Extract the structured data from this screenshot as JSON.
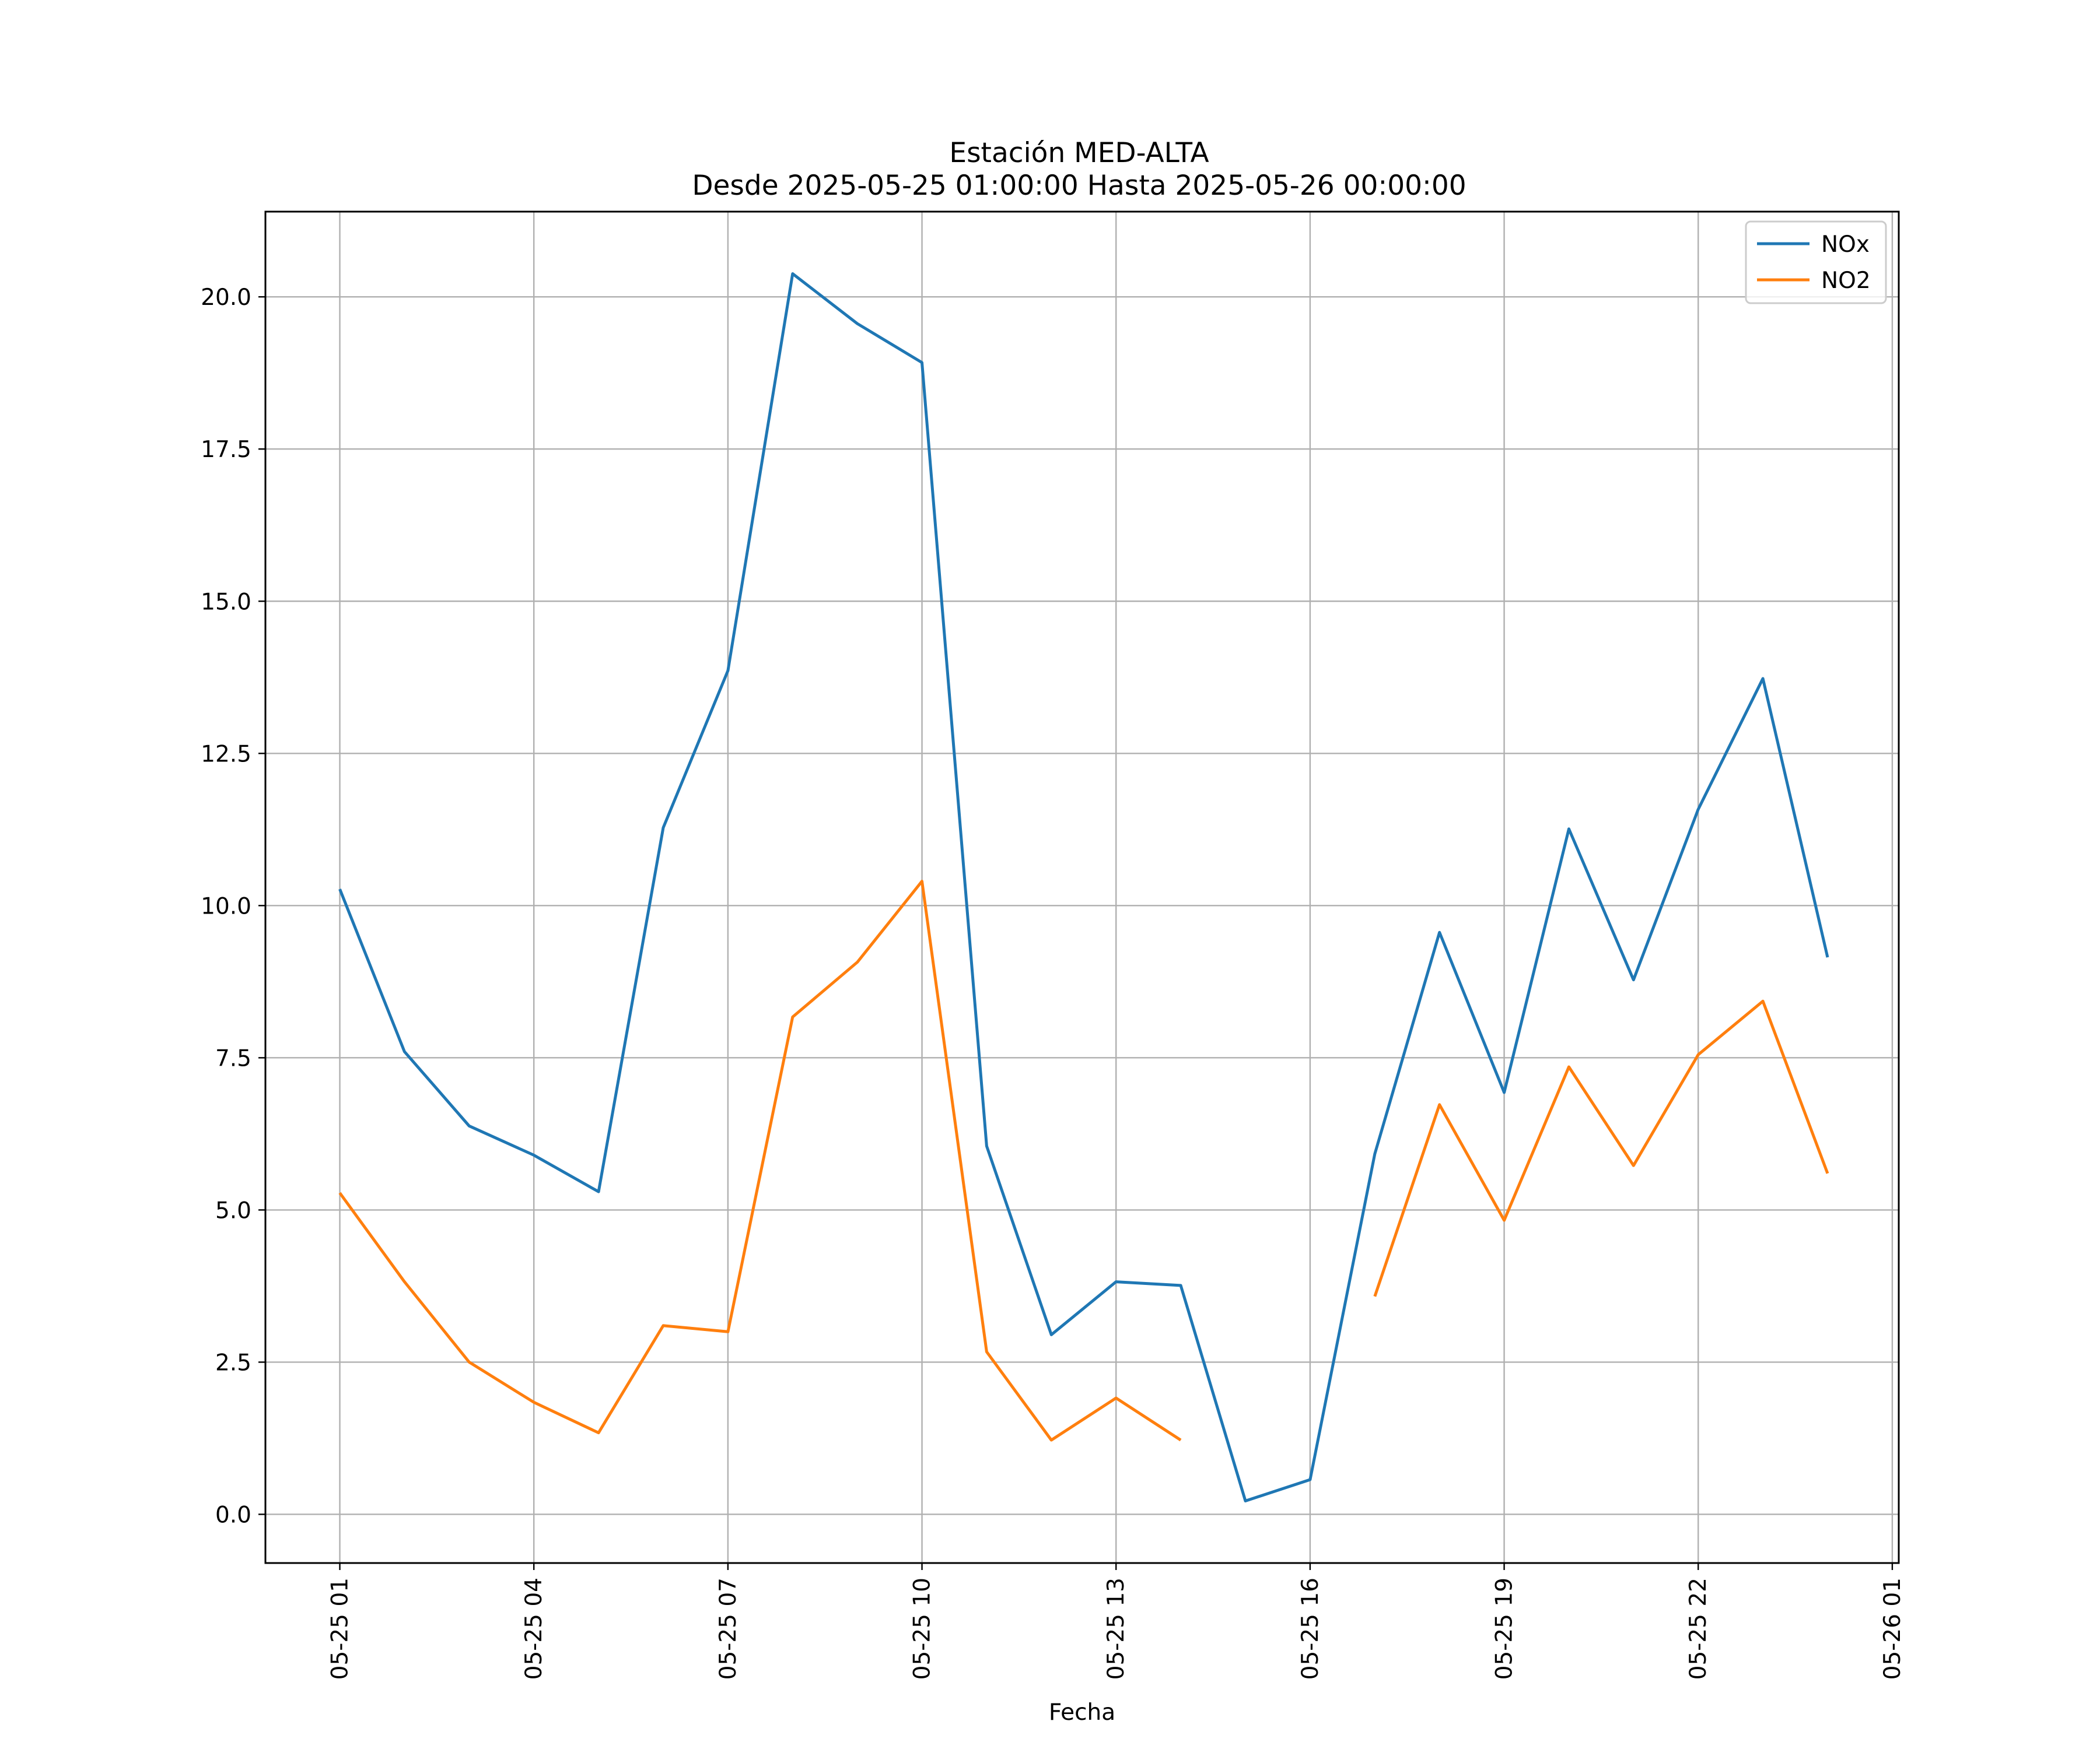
{
  "chart_data": {
    "type": "line",
    "title": "Estación MED-ALTA",
    "subtitle": "Desde 2025-05-25 01:00:00 Hasta 2025-05-26 00:00:00",
    "xlabel": "Fecha",
    "ylabel": "",
    "x": [
      "05-25 01",
      "05-25 02",
      "05-25 03",
      "05-25 04",
      "05-25 05",
      "05-25 06",
      "05-25 07",
      "05-25 08",
      "05-25 09",
      "05-25 10",
      "05-25 11",
      "05-25 12",
      "05-25 13",
      "05-25 14",
      "05-25 15",
      "05-25 16",
      "05-25 17",
      "05-25 18",
      "05-25 19",
      "05-25 20",
      "05-25 21",
      "05-25 22",
      "05-25 23",
      "05-26 00"
    ],
    "x_ticks": [
      "05-25 01",
      "05-25 04",
      "05-25 07",
      "05-25 10",
      "05-25 13",
      "05-25 16",
      "05-25 19",
      "05-25 22",
      "05-26 01"
    ],
    "y_ticks": [
      "0.0",
      "2.5",
      "5.0",
      "7.5",
      "10.0",
      "12.5",
      "15.0",
      "17.5",
      "20.0"
    ],
    "ylim": [
      -0.8,
      21.4
    ],
    "xlim_hours": [
      -1.15,
      24.1
    ],
    "grid": true,
    "legend_position": "top-right",
    "series": [
      {
        "name": "NOx",
        "color": "#1f77b4",
        "values": [
          10.27,
          7.6,
          6.38,
          5.9,
          5.3,
          11.28,
          13.86,
          20.38,
          19.56,
          18.92,
          6.05,
          2.95,
          3.82,
          3.76,
          0.22,
          0.57,
          5.92,
          9.56,
          6.93,
          11.26,
          8.78,
          11.58,
          13.73,
          9.15
        ]
      },
      {
        "name": "NO2",
        "color": "#ff7f0e",
        "values": [
          5.28,
          3.82,
          2.5,
          1.84,
          1.34,
          3.1,
          3.0,
          8.17,
          9.07,
          10.4,
          2.67,
          1.22,
          1.91,
          1.22,
          null,
          null,
          3.58,
          6.73,
          4.83,
          7.35,
          5.73,
          7.55,
          8.43,
          5.6
        ]
      }
    ]
  }
}
